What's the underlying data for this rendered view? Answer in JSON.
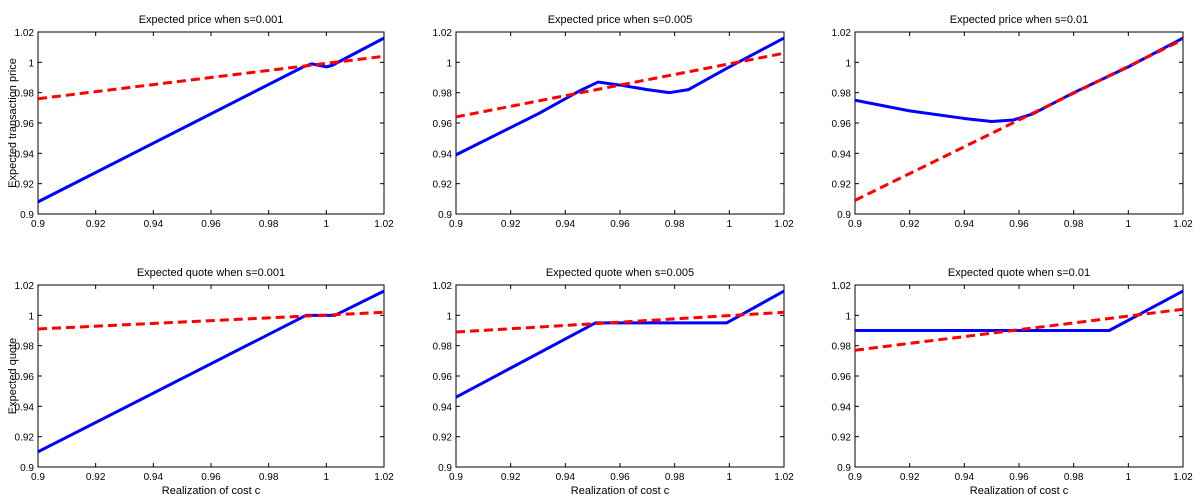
{
  "colors": {
    "solid": "#0000ff",
    "dashed": "#ff0000",
    "axes": "#000000",
    "background": "#ffffff"
  },
  "chart_data": [
    {
      "type": "line",
      "title": "Expected price when s=0.001",
      "xlabel": "",
      "ylabel": "Expected transaction price",
      "xlim": [
        0.9,
        1.02
      ],
      "ylim": [
        0.9,
        1.02
      ],
      "xticks": [
        "0.9",
        "0.92",
        "0.94",
        "0.96",
        "0.98",
        "1",
        "1.02"
      ],
      "yticks": [
        "0.9",
        "0.92",
        "0.94",
        "0.96",
        "0.98",
        "1",
        "1.02"
      ],
      "series": [
        {
          "style": "solid",
          "color": "#0000ff",
          "x": [
            0.9,
            0.992,
            0.995,
            1.0,
            1.002,
            1.02
          ],
          "y": [
            0.908,
            0.997,
            0.999,
            0.997,
            0.998,
            1.016
          ]
        },
        {
          "style": "dashed",
          "color": "#ff0000",
          "x": [
            0.9,
            1.02
          ],
          "y": [
            0.976,
            1.004
          ]
        }
      ]
    },
    {
      "type": "line",
      "title": "Expected price when s=0.005",
      "xlabel": "",
      "ylabel": "",
      "xlim": [
        0.9,
        1.02
      ],
      "ylim": [
        0.9,
        1.02
      ],
      "xticks": [
        "0.9",
        "0.92",
        "0.94",
        "0.96",
        "0.98",
        "1",
        "1.02"
      ],
      "yticks": [
        "0.9",
        "0.92",
        "0.94",
        "0.96",
        "0.98",
        "1",
        "1.02"
      ],
      "series": [
        {
          "style": "solid",
          "color": "#0000ff",
          "x": [
            0.9,
            0.93,
            0.945,
            0.952,
            0.96,
            0.97,
            0.978,
            0.985,
            0.99,
            1.0,
            1.02
          ],
          "y": [
            0.939,
            0.966,
            0.981,
            0.987,
            0.985,
            0.982,
            0.98,
            0.982,
            0.987,
            0.997,
            1.016
          ]
        },
        {
          "style": "dashed",
          "color": "#ff0000",
          "x": [
            0.9,
            1.02
          ],
          "y": [
            0.964,
            1.006
          ]
        }
      ]
    },
    {
      "type": "line",
      "title": "Expected price when s=0.01",
      "xlabel": "",
      "ylabel": "",
      "xlim": [
        0.9,
        1.02
      ],
      "ylim": [
        0.9,
        1.02
      ],
      "xticks": [
        "0.9",
        "0.92",
        "0.94",
        "0.96",
        "0.98",
        "1",
        "1.02"
      ],
      "yticks": [
        "0.9",
        "0.92",
        "0.94",
        "0.96",
        "0.98",
        "1",
        "1.02"
      ],
      "series": [
        {
          "style": "solid",
          "color": "#0000ff",
          "x": [
            0.9,
            0.92,
            0.94,
            0.95,
            0.958,
            0.965,
            0.98,
            1.0,
            1.02
          ],
          "y": [
            0.975,
            0.968,
            0.963,
            0.961,
            0.962,
            0.966,
            0.98,
            0.997,
            1.016
          ]
        },
        {
          "style": "dashed",
          "color": "#ff0000",
          "x": [
            0.9,
            1.02
          ],
          "y": [
            0.909,
            1.015
          ]
        }
      ]
    },
    {
      "type": "line",
      "title": "Expected quote when s=0.001",
      "xlabel": "Realization of cost c",
      "ylabel": "Expected quote",
      "xlim": [
        0.9,
        1.02
      ],
      "ylim": [
        0.9,
        1.02
      ],
      "xticks": [
        "0.9",
        "0.92",
        "0.94",
        "0.96",
        "0.98",
        "1",
        "1.02"
      ],
      "yticks": [
        "0.9",
        "0.92",
        "0.94",
        "0.96",
        "0.98",
        "1",
        "1.02"
      ],
      "series": [
        {
          "style": "solid",
          "color": "#0000ff",
          "x": [
            0.9,
            0.993,
            1.003,
            1.02
          ],
          "y": [
            0.91,
            1.0,
            1.0,
            1.016
          ]
        },
        {
          "style": "dashed",
          "color": "#ff0000",
          "x": [
            0.9,
            1.02
          ],
          "y": [
            0.991,
            1.002
          ]
        }
      ]
    },
    {
      "type": "line",
      "title": "Expected quote when s=0.005",
      "xlabel": "Realization of cost c",
      "ylabel": "",
      "xlim": [
        0.9,
        1.02
      ],
      "ylim": [
        0.9,
        1.02
      ],
      "xticks": [
        "0.9",
        "0.92",
        "0.94",
        "0.96",
        "0.98",
        "1",
        "1.02"
      ],
      "yticks": [
        "0.9",
        "0.92",
        "0.94",
        "0.96",
        "0.98",
        "1",
        "1.02"
      ],
      "series": [
        {
          "style": "solid",
          "color": "#0000ff",
          "x": [
            0.9,
            0.951,
            0.999,
            1.02
          ],
          "y": [
            0.946,
            0.995,
            0.995,
            1.016
          ]
        },
        {
          "style": "dashed",
          "color": "#ff0000",
          "x": [
            0.9,
            1.02
          ],
          "y": [
            0.989,
            1.002
          ]
        }
      ]
    },
    {
      "type": "line",
      "title": "Expected quote when s=0.01",
      "xlabel": "Realization of cost c",
      "ylabel": "",
      "xlim": [
        0.9,
        1.02
      ],
      "ylim": [
        0.9,
        1.02
      ],
      "xticks": [
        "0.9",
        "0.92",
        "0.94",
        "0.96",
        "0.98",
        "1",
        "1.02"
      ],
      "yticks": [
        "0.9",
        "0.92",
        "0.94",
        "0.96",
        "0.98",
        "1",
        "1.02"
      ],
      "series": [
        {
          "style": "solid",
          "color": "#0000ff",
          "x": [
            0.9,
            0.993,
            1.02
          ],
          "y": [
            0.99,
            0.99,
            1.016
          ]
        },
        {
          "style": "dashed",
          "color": "#ff0000",
          "x": [
            0.9,
            1.02
          ],
          "y": [
            0.977,
            1.004
          ]
        }
      ]
    }
  ]
}
